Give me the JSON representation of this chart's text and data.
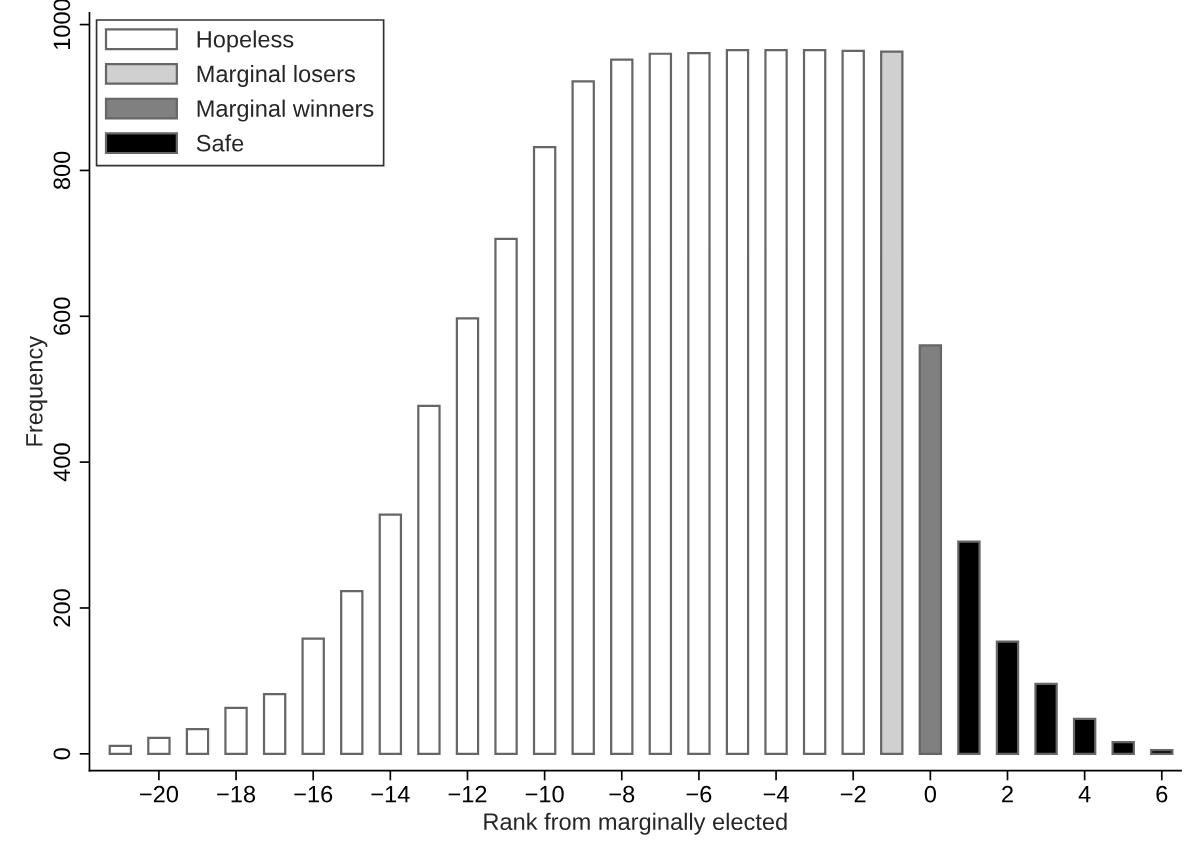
{
  "chart_data": {
    "type": "bar",
    "xlabel": "Rank from marginally elected",
    "ylabel": "Frequency",
    "series": [
      {
        "name": "Hopeless",
        "color": "#ffffff",
        "x": [
          -21,
          -20,
          -19,
          -18,
          -17,
          -16,
          -15,
          -14,
          -13,
          -12,
          -11,
          -10,
          -9,
          -8,
          -7,
          -6,
          -5,
          -4,
          -3,
          -2
        ],
        "values": [
          11,
          22,
          34,
          63,
          82,
          158,
          223,
          328,
          477,
          597,
          706,
          832,
          922,
          952,
          960,
          961,
          965,
          965,
          965,
          964
        ]
      },
      {
        "name": "Marginal losers",
        "color": "#d0d0d0",
        "x": [
          -1
        ],
        "values": [
          963
        ]
      },
      {
        "name": "Marginal winners",
        "color": "#808080",
        "x": [
          0
        ],
        "values": [
          560
        ]
      },
      {
        "name": "Safe",
        "color": "#000000",
        "x": [
          1,
          2,
          3,
          4,
          5,
          6
        ],
        "values": [
          291,
          154,
          96,
          48,
          16,
          5
        ]
      }
    ],
    "xlim": [
      -21.8,
      6.5
    ],
    "ylim": [
      -23,
      1016
    ],
    "xticks": [
      {
        "value": -20,
        "label": "−20"
      },
      {
        "value": -18,
        "label": "−18"
      },
      {
        "value": -16,
        "label": "−16"
      },
      {
        "value": -14,
        "label": "−14"
      },
      {
        "value": -12,
        "label": "−12"
      },
      {
        "value": -10,
        "label": "−10"
      },
      {
        "value": -8,
        "label": "−8"
      },
      {
        "value": -6,
        "label": "−6"
      },
      {
        "value": -4,
        "label": "−4"
      },
      {
        "value": -2,
        "label": "−2"
      },
      0,
      2,
      4,
      6
    ],
    "yticks": [
      0,
      200,
      400,
      600,
      800,
      1000
    ],
    "grid": false,
    "legend": "top left"
  }
}
